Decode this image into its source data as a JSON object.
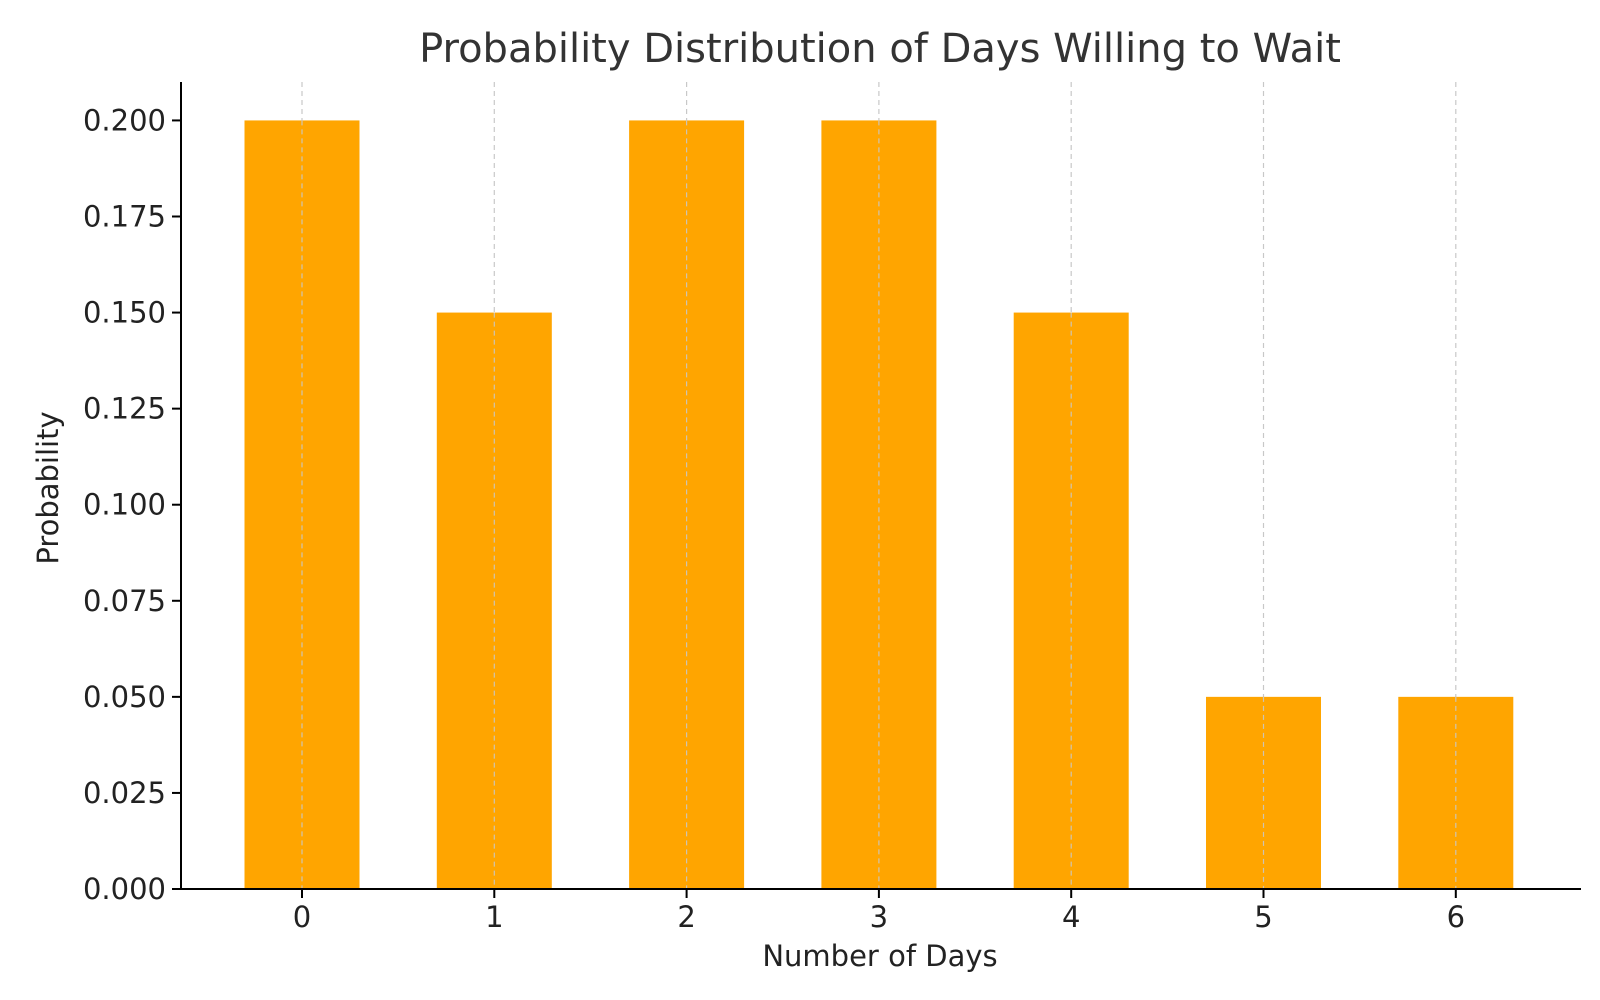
{
  "chart_data": {
    "type": "bar",
    "title": "Probability Distribution of Days Willing to Wait",
    "xlabel": "Number of Days",
    "ylabel": "Probability",
    "categories": [
      "0",
      "1",
      "2",
      "3",
      "4",
      "5",
      "6"
    ],
    "values": [
      0.2,
      0.15,
      0.2,
      0.2,
      0.15,
      0.05,
      0.05
    ],
    "ylim": [
      0,
      0.21
    ],
    "yticks": [
      "0.000",
      "0.025",
      "0.050",
      "0.075",
      "0.100",
      "0.125",
      "0.150",
      "0.175",
      "0.200"
    ],
    "grid": "vertical dashed",
    "bar_color": "#FFA500",
    "grid_color": "#c8c8c8",
    "axis_color": "#000000"
  }
}
